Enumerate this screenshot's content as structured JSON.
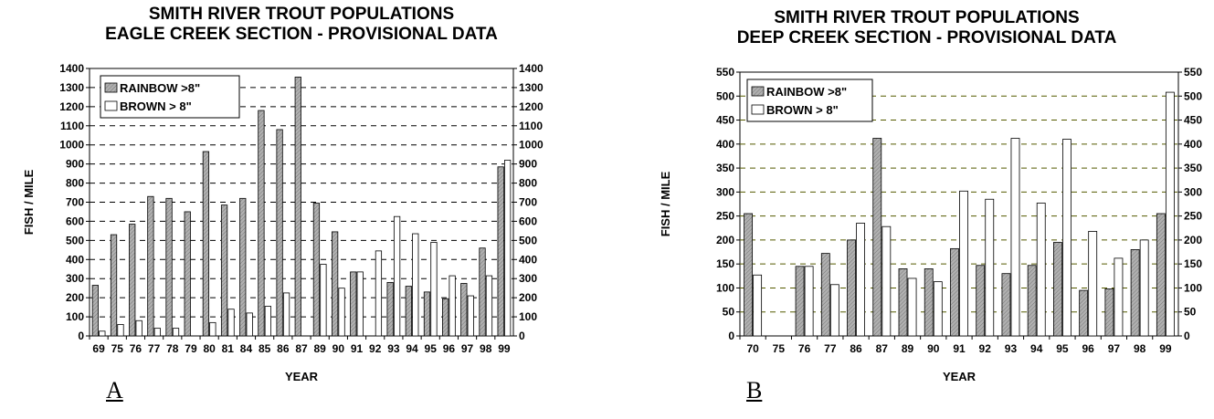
{
  "chart_data": [
    {
      "type": "bar",
      "title": "SMITH RIVER TROUT POPULATIONS",
      "subtitle": "EAGLE CREEK SECTION - PROVISIONAL DATA",
      "xlabel": "YEAR",
      "ylabel": "FISH / MILE",
      "panel_label": "A",
      "ylim": [
        0,
        1400
      ],
      "yticks": [
        0,
        100,
        200,
        300,
        400,
        500,
        600,
        700,
        800,
        900,
        1000,
        1100,
        1200,
        1300,
        1400
      ],
      "grid": "dashed horizontal",
      "legend_position": "top-left",
      "categories": [
        "69",
        "75",
        "76",
        "77",
        "78",
        "79",
        "80",
        "81",
        "84",
        "85",
        "86",
        "87",
        "89",
        "90",
        "91",
        "92",
        "93",
        "94",
        "95",
        "96",
        "97",
        "98",
        "99"
      ],
      "series": [
        {
          "name": "RAINBOW >8\"",
          "color": "#b0b0b0",
          "values": [
            265,
            530,
            585,
            730,
            720,
            650,
            965,
            685,
            720,
            1180,
            1080,
            1355,
            695,
            545,
            335,
            0,
            280,
            260,
            230,
            195,
            275,
            460,
            885
          ]
        },
        {
          "name": "BROWN > 8\"",
          "color": "#ffffff",
          "values": [
            25,
            60,
            80,
            40,
            40,
            0,
            70,
            140,
            120,
            155,
            225,
            0,
            375,
            250,
            335,
            445,
            625,
            535,
            490,
            315,
            210,
            315,
            920
          ]
        }
      ]
    },
    {
      "type": "bar",
      "title": "SMITH RIVER TROUT POPULATIONS",
      "subtitle": "DEEP CREEK SECTION - PROVISIONAL DATA",
      "xlabel": "YEAR",
      "ylabel": "FISH / MILE",
      "panel_label": "B",
      "ylim": [
        0,
        550
      ],
      "yticks": [
        0,
        50,
        100,
        150,
        200,
        250,
        300,
        350,
        400,
        450,
        500,
        550
      ],
      "grid": "dashed horizontal",
      "legend_position": "top-left",
      "categories": [
        "70",
        "75",
        "76",
        "77",
        "86",
        "87",
        "89",
        "90",
        "91",
        "92",
        "93",
        "94",
        "95",
        "96",
        "97",
        "98",
        "99"
      ],
      "series": [
        {
          "name": "RAINBOW >8\"",
          "color": "#b0b0b0",
          "values": [
            255,
            0,
            145,
            172,
            200,
            412,
            140,
            140,
            182,
            147,
            130,
            147,
            195,
            95,
            98,
            180,
            255
          ]
        },
        {
          "name": "BROWN > 8\"",
          "color": "#ffffff",
          "values": [
            127,
            0,
            145,
            107,
            235,
            228,
            120,
            113,
            302,
            285,
            412,
            277,
            410,
            218,
            162,
            200,
            508
          ]
        }
      ]
    }
  ]
}
